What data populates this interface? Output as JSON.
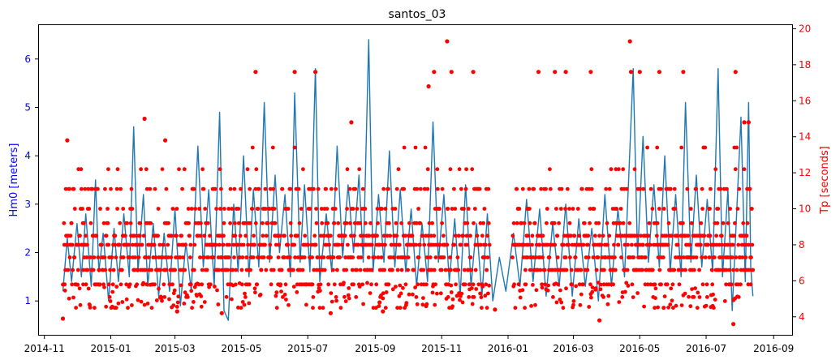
{
  "chart_data": {
    "type": "line",
    "title": "santos_03",
    "xlabel": "",
    "y1label": "Hm0 [meters]",
    "y2label": "Tp [seconds]",
    "x_ticks": [
      "2014-11",
      "2015-01",
      "2015-03",
      "2015-05",
      "2015-07",
      "2015-09",
      "2015-11",
      "2016-01",
      "2016-03",
      "2016-05",
      "2016-07",
      "2016-09"
    ],
    "y1_ticks": [
      "1",
      "2",
      "3",
      "4",
      "5",
      "6"
    ],
    "y2_ticks": [
      "4",
      "6",
      "8",
      "10",
      "12",
      "14",
      "16",
      "18",
      "20"
    ],
    "xlim": [
      "2014-10-27",
      "2016-09-18"
    ],
    "y1lim": [
      0.3,
      6.7
    ],
    "y2lim": [
      3.0,
      20.2
    ],
    "grid": false,
    "colors": {
      "hm0": "#1f77b4",
      "tp": "#ff0000",
      "y1_axis": "#0000ff",
      "y2_axis": "#ff0000"
    },
    "series": [
      {
        "name": "Hm0",
        "axis": "left",
        "style": "line",
        "points": [
          [
            "2014-11-18",
            1.2
          ],
          [
            "2014-11-22",
            2.3
          ],
          [
            "2014-11-26",
            1.4
          ],
          [
            "2014-12-01",
            2.6
          ],
          [
            "2014-12-05",
            1.5
          ],
          [
            "2014-12-09",
            2.8
          ],
          [
            "2014-12-14",
            1.3
          ],
          [
            "2014-12-18",
            3.5
          ],
          [
            "2014-12-21",
            1.6
          ],
          [
            "2014-12-25",
            2.4
          ],
          [
            "2014-12-30",
            1.0
          ],
          [
            "2015-01-04",
            2.5
          ],
          [
            "2015-01-08",
            1.4
          ],
          [
            "2015-01-13",
            2.8
          ],
          [
            "2015-01-18",
            1.5
          ],
          [
            "2015-01-22",
            4.6
          ],
          [
            "2015-01-26",
            1.6
          ],
          [
            "2015-01-31",
            3.2
          ],
          [
            "2015-02-04",
            1.3
          ],
          [
            "2015-02-09",
            2.6
          ],
          [
            "2015-02-14",
            1.1
          ],
          [
            "2015-02-19",
            2.4
          ],
          [
            "2015-02-24",
            1.2
          ],
          [
            "2015-03-01",
            2.9
          ],
          [
            "2015-03-06",
            0.9
          ],
          [
            "2015-03-11",
            2.2
          ],
          [
            "2015-03-16",
            1.2
          ],
          [
            "2015-03-22",
            4.2
          ],
          [
            "2015-03-27",
            1.7
          ],
          [
            "2015-04-01",
            3.3
          ],
          [
            "2015-04-06",
            1.3
          ],
          [
            "2015-04-11",
            4.9
          ],
          [
            "2015-04-15",
            0.8
          ],
          [
            "2015-04-19",
            0.6
          ],
          [
            "2015-04-24",
            3.0
          ],
          [
            "2015-04-28",
            1.6
          ],
          [
            "2015-05-03",
            4.0
          ],
          [
            "2015-05-08",
            1.5
          ],
          [
            "2015-05-12",
            3.3
          ],
          [
            "2015-05-17",
            1.7
          ],
          [
            "2015-05-22",
            5.1
          ],
          [
            "2015-05-27",
            1.8
          ],
          [
            "2015-06-01",
            3.6
          ],
          [
            "2015-06-05",
            2.0
          ],
          [
            "2015-06-10",
            3.2
          ],
          [
            "2015-06-15",
            1.5
          ],
          [
            "2015-06-19",
            5.3
          ],
          [
            "2015-06-24",
            1.8
          ],
          [
            "2015-06-28",
            3.4
          ],
          [
            "2015-07-03",
            1.6
          ],
          [
            "2015-07-08",
            5.8
          ],
          [
            "2015-07-12",
            1.4
          ],
          [
            "2015-07-18",
            2.8
          ],
          [
            "2015-07-23",
            1.6
          ],
          [
            "2015-07-28",
            4.2
          ],
          [
            "2015-08-02",
            1.9
          ],
          [
            "2015-08-07",
            3.4
          ],
          [
            "2015-08-12",
            2.0
          ],
          [
            "2015-08-17",
            3.6
          ],
          [
            "2015-08-21",
            1.8
          ],
          [
            "2015-08-26",
            6.4
          ],
          [
            "2015-08-30",
            1.6
          ],
          [
            "2015-09-04",
            3.2
          ],
          [
            "2015-09-09",
            1.8
          ],
          [
            "2015-09-14",
            4.1
          ],
          [
            "2015-09-19",
            1.7
          ],
          [
            "2015-09-24",
            3.3
          ],
          [
            "2015-09-29",
            1.6
          ],
          [
            "2015-10-04",
            2.9
          ],
          [
            "2015-10-09",
            1.3
          ],
          [
            "2015-10-14",
            2.6
          ],
          [
            "2015-10-19",
            1.4
          ],
          [
            "2015-10-24",
            4.7
          ],
          [
            "2015-10-29",
            1.8
          ],
          [
            "2015-11-03",
            3.2
          ],
          [
            "2015-11-08",
            1.4
          ],
          [
            "2015-11-13",
            2.7
          ],
          [
            "2015-11-18",
            1.1
          ],
          [
            "2015-11-23",
            3.4
          ],
          [
            "2015-11-28",
            1.3
          ],
          [
            "2015-12-03",
            2.6
          ],
          [
            "2015-12-08",
            1.1
          ],
          [
            "2015-12-13",
            2.8
          ],
          [
            "2015-12-18",
            1.0
          ],
          [
            "2015-12-24",
            1.9
          ],
          [
            "2015-12-30",
            1.2
          ],
          [
            "2016-01-06",
            2.4
          ],
          [
            "2016-01-12",
            1.3
          ],
          [
            "2016-01-18",
            3.1
          ],
          [
            "2016-01-24",
            1.4
          ],
          [
            "2016-01-30",
            2.9
          ],
          [
            "2016-02-05",
            1.1
          ],
          [
            "2016-02-11",
            2.6
          ],
          [
            "2016-02-17",
            1.3
          ],
          [
            "2016-02-23",
            3.0
          ],
          [
            "2016-02-29",
            1.1
          ],
          [
            "2016-03-06",
            2.7
          ],
          [
            "2016-03-12",
            1.3
          ],
          [
            "2016-03-18",
            2.5
          ],
          [
            "2016-03-24",
            1.0
          ],
          [
            "2016-03-30",
            3.2
          ],
          [
            "2016-04-05",
            1.3
          ],
          [
            "2016-04-11",
            2.9
          ],
          [
            "2016-04-17",
            1.5
          ],
          [
            "2016-04-21",
            3.6
          ],
          [
            "2016-04-25",
            5.8
          ],
          [
            "2016-04-29",
            1.9
          ],
          [
            "2016-05-04",
            4.4
          ],
          [
            "2016-05-09",
            1.8
          ],
          [
            "2016-05-14",
            3.4
          ],
          [
            "2016-05-19",
            1.7
          ],
          [
            "2016-05-24",
            4.0
          ],
          [
            "2016-05-29",
            1.6
          ],
          [
            "2016-06-03",
            3.2
          ],
          [
            "2016-06-08",
            1.5
          ],
          [
            "2016-06-12",
            5.1
          ],
          [
            "2016-06-17",
            1.8
          ],
          [
            "2016-06-22",
            3.6
          ],
          [
            "2016-06-27",
            1.7
          ],
          [
            "2016-07-02",
            3.1
          ],
          [
            "2016-07-07",
            1.6
          ],
          [
            "2016-07-12",
            5.8
          ],
          [
            "2016-07-16",
            1.5
          ],
          [
            "2016-07-21",
            3.3
          ],
          [
            "2016-07-25",
            0.8
          ],
          [
            "2016-07-29",
            2.8
          ],
          [
            "2016-08-02",
            4.8
          ],
          [
            "2016-08-06",
            1.4
          ],
          [
            "2016-08-09",
            5.1
          ],
          [
            "2016-08-11",
            1.7
          ],
          [
            "2016-08-13",
            1.1
          ]
        ]
      },
      {
        "name": "Tp",
        "axis": "right",
        "style": "points",
        "levels_seconds": [
          4.5,
          5.1,
          5.8,
          6.6,
          7.3,
          8.0,
          8.5,
          9.2,
          10.0,
          11.1,
          12.2,
          13.4
        ],
        "start": "2014-11-18",
        "end": "2016-08-13",
        "gap": [
          "2015-12-15",
          "2016-01-05"
        ],
        "max_level_by_month": {
          "2014-11": 11.1,
          "2014-12": 12.2,
          "2015-01": 12.2,
          "2015-02": 12.2,
          "2015-03": 12.2,
          "2015-04": 12.2,
          "2015-05": 13.4,
          "2015-06": 13.4,
          "2015-07": 13.4,
          "2015-08": 13.4,
          "2015-09": 13.4,
          "2015-10": 13.4,
          "2015-11": 12.2,
          "2015-12": 11.1,
          "2016-01": 11.1,
          "2016-02": 12.2,
          "2016-03": 12.2,
          "2016-04": 12.2,
          "2016-05": 13.4,
          "2016-06": 13.4,
          "2016-07": 13.4,
          "2016-08": 13.4
        },
        "extra_points": [
          [
            "2014-11-18",
            3.9
          ],
          [
            "2014-11-22",
            13.8
          ],
          [
            "2015-02-01",
            15.0
          ],
          [
            "2015-02-20",
            13.8
          ],
          [
            "2015-03-03",
            4.3
          ],
          [
            "2015-04-13",
            4.2
          ],
          [
            "2015-05-14",
            17.6
          ],
          [
            "2015-06-19",
            17.6
          ],
          [
            "2015-07-08",
            17.6
          ],
          [
            "2015-07-22",
            4.2
          ],
          [
            "2015-08-10",
            14.8
          ],
          [
            "2015-09-05",
            4.8
          ],
          [
            "2015-09-08",
            4.3
          ],
          [
            "2015-10-20",
            16.8
          ],
          [
            "2015-10-25",
            17.6
          ],
          [
            "2015-11-06",
            19.3
          ],
          [
            "2015-11-10",
            17.6
          ],
          [
            "2015-11-30",
            17.6
          ],
          [
            "2015-12-20",
            4.4
          ],
          [
            "2016-01-29",
            17.6
          ],
          [
            "2016-02-13",
            17.6
          ],
          [
            "2016-02-23",
            17.6
          ],
          [
            "2016-03-17",
            17.6
          ],
          [
            "2016-03-25",
            3.8
          ],
          [
            "2016-04-22",
            19.3
          ],
          [
            "2016-04-23",
            17.6
          ],
          [
            "2016-05-01",
            17.6
          ],
          [
            "2016-05-19",
            17.6
          ],
          [
            "2016-05-23",
            4.5
          ],
          [
            "2016-06-10",
            17.6
          ],
          [
            "2016-07-07",
            4.6
          ],
          [
            "2016-07-26",
            3.6
          ],
          [
            "2016-07-28",
            17.6
          ],
          [
            "2016-08-05",
            14.8
          ],
          [
            "2016-08-09",
            14.8
          ]
        ]
      }
    ]
  }
}
